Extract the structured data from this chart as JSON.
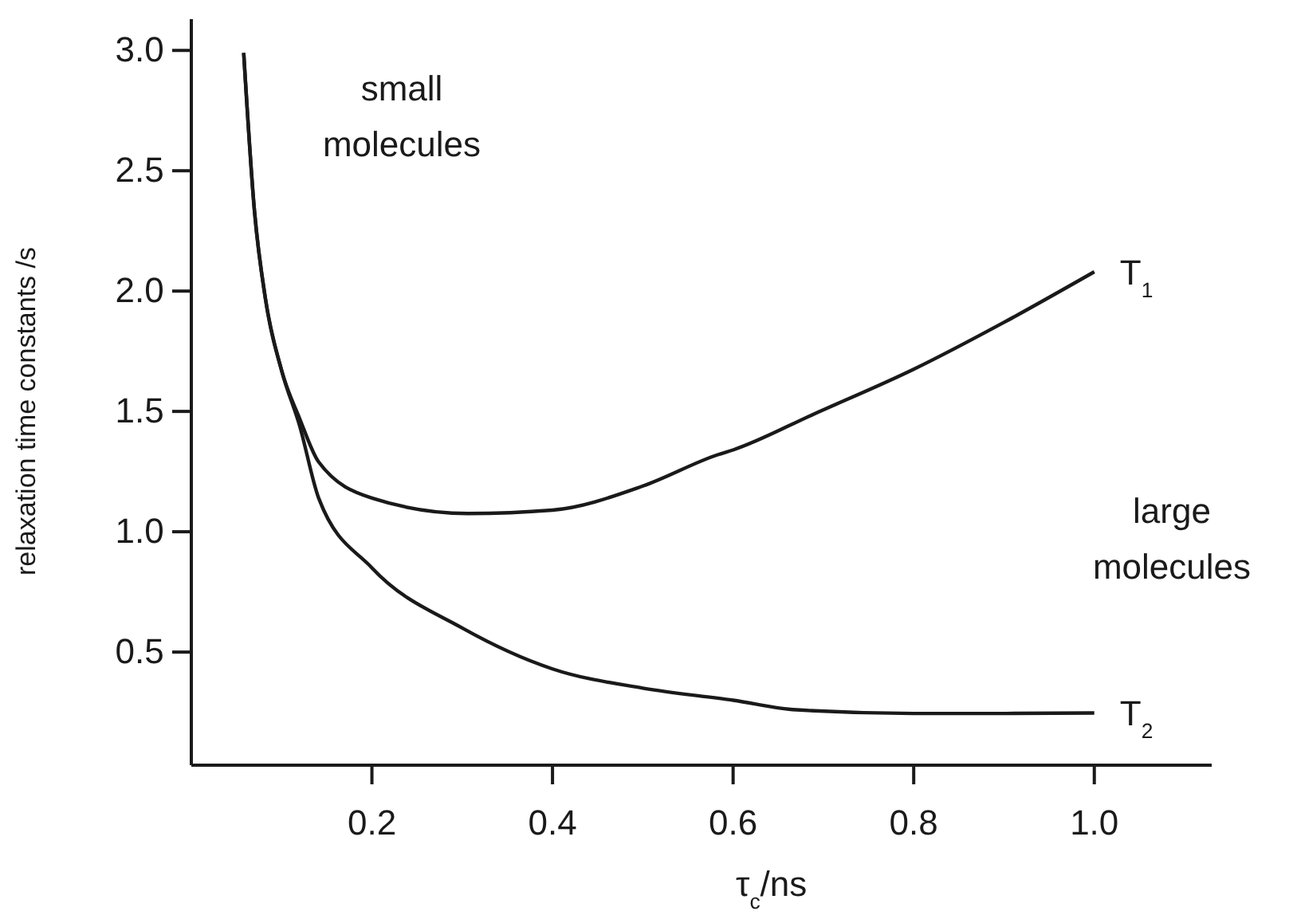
{
  "chart_data": {
    "type": "line",
    "xlabel": "τ$_{c}$/ns",
    "ylabel": "relaxation time constants /s",
    "xlim": [
      0,
      1.13
    ],
    "ylim": [
      0.03,
      3.13
    ],
    "xticks": [
      0.2,
      0.4,
      0.6,
      0.8,
      {
        "value": 1,
        "label": "1.0"
      }
    ],
    "yticks": [
      0.5,
      {
        "value": 1,
        "label": "1.0"
      },
      1.5,
      {
        "value": 2,
        "label": "2.0"
      },
      2.5,
      {
        "value": 3,
        "label": "3.0"
      }
    ],
    "grid": false,
    "legend": false,
    "marker": "none",
    "line_style": "solid",
    "annotations": [
      "small molecules",
      "large molecules"
    ],
    "series": [
      {
        "name": "T$_{1}$",
        "color": "#1a1a1a",
        "x": [
          0.058,
          0.07,
          0.082,
          0.1,
          0.12,
          0.141,
          0.2,
          0.306,
          0.4,
          0.5,
          0.583,
          0.6,
          0.69,
          0.8,
          0.9,
          1.0
        ],
        "values": [
          2.99,
          2.33,
          1.97,
          1.67,
          1.47,
          1.29,
          1.14,
          1.076,
          1.09,
          1.19,
          1.32,
          1.34,
          1.49,
          1.675,
          1.87,
          2.08
        ]
      },
      {
        "name": "T$_{2}$",
        "color": "#1a1a1a",
        "x": [
          0.058,
          0.07,
          0.082,
          0.1,
          0.12,
          0.141,
          0.2,
          0.3,
          0.4,
          0.5,
          0.6,
          0.67,
          0.8,
          0.9,
          1.0
        ],
        "values": [
          2.99,
          2.33,
          1.97,
          1.67,
          1.44,
          1.14,
          0.85,
          0.6,
          0.43,
          0.35,
          0.3,
          0.26,
          0.245,
          0.245,
          0.247
        ]
      }
    ]
  }
}
